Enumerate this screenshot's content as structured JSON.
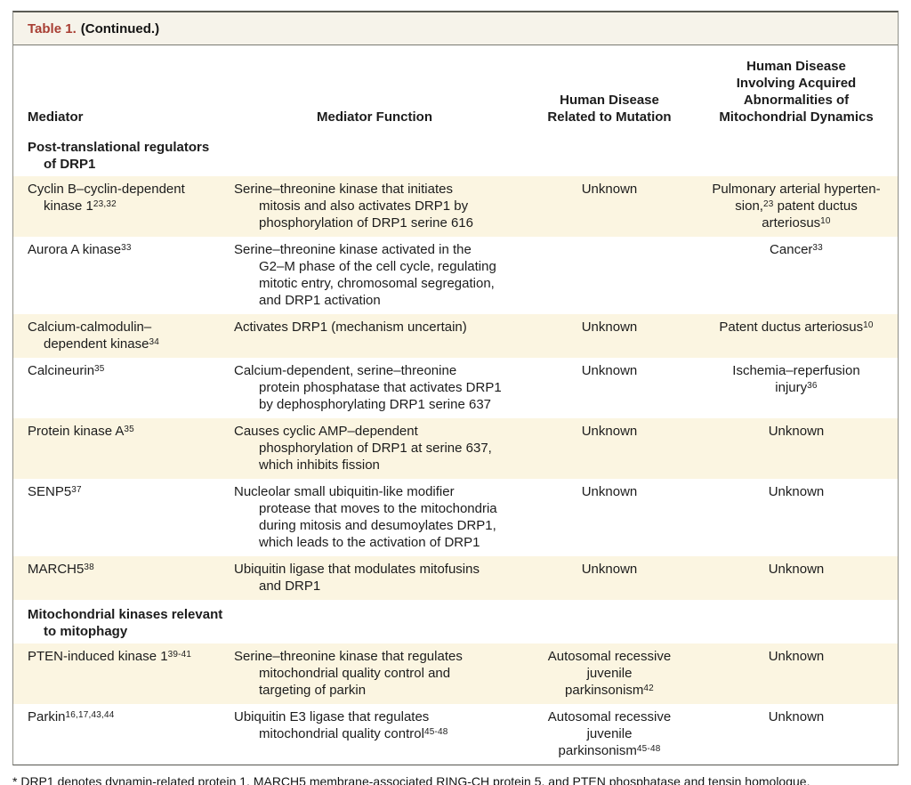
{
  "title": {
    "label": "Table 1.",
    "continued": "(Continued.)"
  },
  "columns": [
    "Mediator",
    "Mediator Function",
    "Human Disease\nRelated to Mutation",
    "Human Disease\nInvolving Acquired\nAbnormalities of\nMitochondrial Dynamics"
  ],
  "sections": [
    {
      "header": "Post-translational regulators\nof DRP1",
      "rows": [
        {
          "mediator": "Cyclin B–cyclin-dependent\nkinase 1^{23,32}",
          "function": "Serine–threonine kinase that initiates\nmitosis and also activates DRP1 by\nphosphorylation of DRP1 serine 616",
          "mutation": "Unknown",
          "acquired": "Pulmonary arterial hyperten-\nsion,^{23} patent ductus\narteriosus^{10}"
        },
        {
          "mediator": "Aurora A kinase^{33}",
          "function": "Serine–threonine kinase activated in the\nG2–M phase of the cell cycle, regulating\nmitotic entry, chromosomal segregation,\nand DRP1 activation",
          "mutation": "",
          "acquired": "Cancer^{33}"
        },
        {
          "mediator": "Calcium-calmodulin–\ndependent kinase^{34}",
          "function": "Activates DRP1 (mechanism uncertain)",
          "mutation": "Unknown",
          "acquired": "Patent ductus arteriosus^{10}"
        },
        {
          "mediator": "Calcineurin^{35}",
          "function": "Calcium-dependent, serine–threonine\nprotein phosphatase that activates DRP1\nby dephosphorylating DRP1 serine 637",
          "mutation": "Unknown",
          "acquired": "Ischemia–reperfusion\ninjury^{36}"
        },
        {
          "mediator": "Protein kinase A^{35}",
          "function": "Causes cyclic AMP–dependent\nphosphorylation of DRP1 at serine 637,\nwhich inhibits fission",
          "mutation": "Unknown",
          "acquired": "Unknown"
        },
        {
          "mediator": "SENP5^{37}",
          "function": "Nucleolar small ubiquitin-like modifier\nprotease that moves to the mitochondria\nduring mitosis and desumoylates DRP1,\nwhich leads to the activation of DRP1",
          "mutation": "Unknown",
          "acquired": "Unknown"
        },
        {
          "mediator": "MARCH5^{38}",
          "function": "Ubiquitin ligase that modulates mitofusins\nand DRP1",
          "mutation": "Unknown",
          "acquired": "Unknown"
        }
      ]
    },
    {
      "header": "Mitochondrial kinases relevant\nto mitophagy",
      "rows": [
        {
          "mediator": "PTEN-induced kinase 1^{39-41}",
          "function": "Serine–threonine kinase that regulates\nmitochondrial quality control and\ntargeting of parkin",
          "mutation": "Autosomal recessive juvenile\nparkinsonism^{42}",
          "acquired": "Unknown"
        },
        {
          "mediator": "Parkin^{16,17,43,44}",
          "function": "Ubiquitin E3 ligase that regulates\nmitochondrial quality control^{45-48}",
          "mutation": "Autosomal recessive juvenile\nparkinsonism^{45-48}",
          "acquired": "Unknown"
        }
      ]
    }
  ],
  "footnote": {
    "text": "* DRP1 denotes dynamin-related protein 1, MARCH5 membrane-associated RING-CH protein 5, and PTEN phosphatase and tensin homologue."
  },
  "colors": {
    "accent_red": "#a83e33",
    "row_stripe": "#fbf5e1",
    "titlebar_bg": "#f6f3ea",
    "border_gray": "#8f8f88"
  }
}
